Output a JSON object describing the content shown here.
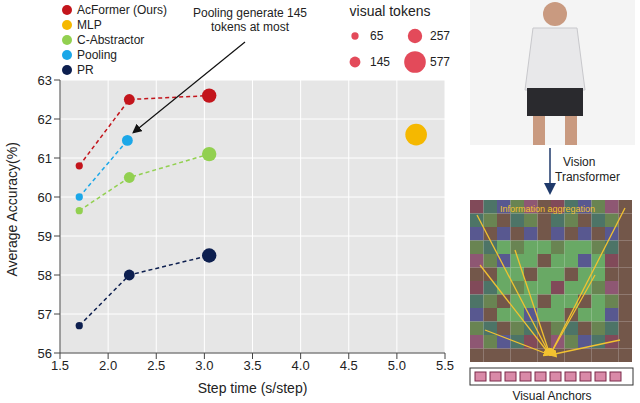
{
  "chart_data": {
    "type": "scatter",
    "x_label": "Step time (s/step)",
    "y_label": "Average Accuracy(%)",
    "xlim": [
      1.5,
      5.5
    ],
    "xticks": [
      1.5,
      {
        "value": 2,
        "label": "2.0"
      },
      2.5,
      {
        "value": 3,
        "label": "3.0"
      },
      3.5,
      {
        "value": 4,
        "label": "4.0"
      },
      4.5,
      {
        "value": 5,
        "label": "5.0"
      },
      5.5
    ],
    "ylim": [
      56,
      63
    ],
    "yticks": [
      56,
      57,
      58,
      59,
      60,
      61,
      62,
      63
    ],
    "grid": true,
    "legend": "top-left",
    "annotation": "Pooling generate 145 tokens at most",
    "size_legend": {
      "title": "visual tokens",
      "values": [
        65,
        257,
        145,
        577
      ]
    },
    "series": [
      {
        "name": "AcFormer (Ours)",
        "color": "#c3151c",
        "marker": "circle",
        "line_style": "dashed",
        "x": [
          1.7,
          2.22,
          3.05
        ],
        "values": [
          60.8,
          62.5,
          62.6
        ],
        "tokens": [
          65,
          145,
          257
        ]
      },
      {
        "name": "MLP",
        "color": "#f5b800",
        "marker": "circle",
        "x": [
          5.2
        ],
        "values": [
          61.6
        ],
        "tokens": [
          577
        ]
      },
      {
        "name": "C-Abstractor",
        "color": "#92d050",
        "marker": "circle",
        "line_style": "dashed",
        "x": [
          1.7,
          2.22,
          3.05
        ],
        "values": [
          59.65,
          60.5,
          61.1
        ],
        "tokens": [
          65,
          145,
          257
        ]
      },
      {
        "name": "Pooling",
        "color": "#1ba7e8",
        "marker": "circle",
        "line_style": "dashed",
        "x": [
          1.7,
          2.2
        ],
        "values": [
          60.0,
          61.45
        ],
        "tokens": [
          65,
          145
        ]
      },
      {
        "name": "PR",
        "color": "#0d1f4f",
        "marker": "circle",
        "line_style": "dashed",
        "x": [
          1.7,
          2.22,
          3.05
        ],
        "values": [
          56.7,
          58.0,
          58.5
        ],
        "tokens": [
          65,
          145,
          257
        ]
      }
    ]
  },
  "diagram": {
    "encoder": "Vision Transformer",
    "aggregation": "Information aggregation",
    "output": "Visual Anchors"
  }
}
